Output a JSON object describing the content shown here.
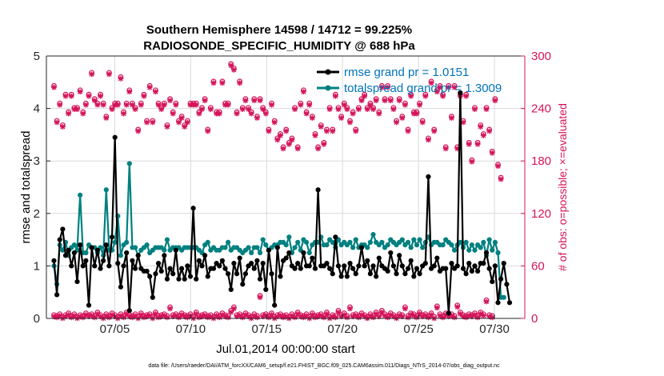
{
  "chart_data": {
    "type": "line",
    "title_line1": "Southern Hemisphere 14598 / 14712 = 99.225%",
    "title_line2": "RADIOSONDE_SPECIFIC_HUMIDITY @ 688 hPa",
    "xlabel": "Jul.01,2014 00:00:00 start",
    "ylabel_left": "rmse and totalspread",
    "ylabel_right": "# of obs: o=possible; ×=evaluated",
    "footnote": "data file: /Users/raeder/DAI/ATM_forcXX/CAM6_setup/f.e21.FHIST_BGC.f09_025.CAM6assim.011/Diags_NTrS_2014-07/obs_diag_output.nc",
    "xlim": [
      0.5,
      32
    ],
    "ylim_left": [
      0,
      5
    ],
    "ylim_right": [
      0,
      300
    ],
    "xticks": [
      5,
      10,
      15,
      20,
      25,
      30
    ],
    "xtick_labels": [
      "07/05",
      "07/10",
      "07/15",
      "07/20",
      "07/25",
      "07/30"
    ],
    "yticks_left": [
      0,
      1,
      2,
      3,
      4,
      5
    ],
    "ytick_labels_left": [
      "0",
      "1",
      "2",
      "3",
      "4",
      "5"
    ],
    "yticks_right": [
      0,
      60,
      120,
      180,
      240,
      300
    ],
    "ytick_labels_right": [
      "0",
      "60",
      "120",
      "180",
      "240",
      "300"
    ],
    "colors": {
      "rmse": "#000000",
      "spread": "#008080",
      "obs": "#d4145a",
      "legend_text": "#0072bd"
    },
    "series": [
      {
        "name": "rmse grand pr = 1.0151",
        "key": "rmse",
        "values": [
          1.1,
          0.45,
          1.5,
          1.7,
          1.2,
          1.3,
          1.0,
          1.25,
          0.7,
          1.4,
          1.0,
          1.1,
          0.25,
          1.35,
          1.0,
          1.3,
          0.95,
          1.1,
          1.4,
          1.0,
          1.55,
          3.45,
          1.05,
          0.6,
          1.0,
          1.25,
          0.15,
          1.1,
          0.95,
          1.2,
          0.95,
          0.9,
          0.9,
          0.8,
          0.4,
          0.85,
          1.05,
          0.9,
          1.2,
          0.75,
          0.95,
          0.85,
          1.3,
          0.75,
          0.95,
          0.75,
          1.0,
          0.8,
          2.1,
          0.75,
          1.1,
          1.0,
          1.2,
          0.8,
          0.95,
          0.95,
          1.05,
          1.0,
          1.1,
          0.95,
          0.85,
          0.55,
          1.05,
          0.85,
          1.15,
          0.65,
          0.85,
          1.0,
          1.05,
          0.95,
          1.1,
          0.75,
          1.05,
          0.55,
          1.3,
          0.85,
          0.25,
          1.35,
          0.8,
          1.1,
          1.15,
          1.25,
          1.0,
          0.95,
          1.05,
          0.95,
          1.25,
          1.0,
          1.0,
          1.15,
          0.95,
          2.45,
          1.0,
          1.0,
          1.05,
          0.95,
          0.85,
          1.55,
          1.0,
          0.8,
          1.0,
          0.8,
          1.05,
          0.95,
          0.85,
          1.0,
          1.35,
          1.0,
          1.1,
          0.85,
          1.0,
          0.8,
          1.15,
          1.0,
          0.95,
          0.9,
          1.25,
          1.0,
          0.85,
          1.2,
          1.0,
          0.85,
          0.95,
          1.1,
          0.8,
          0.95,
          0.85,
          1.0,
          1.05,
          2.7,
          0.95,
          1.0,
          1.15,
          0.9,
          0.95,
          0.95,
          0.1,
          1.05,
          0.95,
          1.0,
          4.3,
          0.95,
          0.85,
          1.05,
          0.9,
          1.0,
          0.9,
          1.05,
          1.05,
          1.25,
          0.95,
          0.7,
          1.0,
          0.3,
          0.75,
          1.05,
          0.65,
          0.3
        ]
      },
      {
        "name": "totalspread grand pr = 1.3009",
        "key": "spread",
        "values": [
          1.0,
          0.65,
          1.4,
          1.3,
          1.45,
          1.2,
          1.35,
          1.4,
          1.3,
          2.35,
          1.25,
          1.25,
          1.4,
          1.35,
          1.35,
          1.25,
          1.35,
          1.2,
          2.45,
          1.3,
          1.3,
          1.45,
          1.95,
          1.2,
          1.4,
          1.45,
          2.95,
          1.35,
          1.35,
          1.2,
          1.3,
          1.35,
          1.4,
          1.25,
          1.3,
          1.35,
          1.35,
          1.35,
          1.3,
          1.5,
          1.3,
          1.35,
          1.35,
          1.35,
          1.3,
          1.35,
          1.35,
          1.35,
          1.35,
          1.35,
          1.3,
          1.25,
          1.4,
          1.45,
          1.3,
          1.35,
          1.3,
          1.3,
          1.35,
          1.35,
          1.45,
          1.3,
          1.35,
          1.35,
          1.3,
          1.25,
          1.3,
          1.35,
          1.25,
          1.35,
          1.35,
          1.25,
          1.5,
          1.4,
          1.3,
          1.35,
          1.4,
          1.4,
          1.45,
          1.45,
          1.4,
          1.55,
          1.25,
          1.35,
          1.45,
          1.3,
          1.5,
          1.45,
          1.25,
          1.4,
          1.45,
          1.45,
          1.55,
          1.4,
          1.4,
          1.5,
          1.45,
          1.35,
          1.5,
          1.4,
          1.45,
          1.4,
          1.45,
          1.35,
          1.5,
          1.35,
          1.4,
          1.4,
          1.35,
          1.45,
          1.6,
          1.45,
          1.4,
          1.45,
          1.35,
          1.4,
          1.5,
          1.45,
          1.4,
          1.45,
          1.5,
          1.4,
          1.45,
          1.35,
          1.5,
          1.4,
          1.5,
          1.35,
          1.45,
          1.55,
          1.4,
          1.45,
          1.45,
          1.4,
          1.4,
          1.5,
          1.45,
          1.4,
          1.3,
          1.4,
          1.45,
          1.35,
          1.45,
          1.3,
          1.4,
          1.3,
          1.4,
          1.35,
          1.45,
          1.2,
          1.5,
          1.3,
          1.45,
          1.25,
          0.4,
          0.4
        ]
      },
      {
        "name": "obs possible/evaluated (upper)",
        "key": "obs_upper",
        "values": [
          265,
          225,
          245,
          220,
          255,
          235,
          255,
          240,
          240,
          260,
          235,
          245,
          255,
          280,
          250,
          245,
          255,
          245,
          230,
          280,
          240,
          245,
          245,
          275,
          235,
          245,
          260,
          245,
          240,
          215,
          245,
          255,
          225,
          265,
          225,
          260,
          245,
          240,
          245,
          220,
          250,
          235,
          245,
          225,
          230,
          220,
          225,
          245,
          245,
          245,
          235,
          240,
          250,
          215,
          240,
          270,
          235,
          235,
          270,
          245,
          245,
          290,
          285,
          235,
          270,
          240,
          250,
          240,
          235,
          250,
          230,
          250,
          240,
          235,
          215,
          245,
          225,
          205,
          210,
          195,
          215,
          200,
          205,
          240,
          195,
          245,
          260,
          235,
          245,
          230,
          210,
          195,
          220,
          200,
          215,
          240,
          215,
          255,
          240,
          230,
          245,
          240,
          225,
          235,
          215,
          240,
          250,
          255,
          240,
          245,
          240,
          250,
          235,
          265,
          250,
          265,
          250,
          240,
          225,
          250,
          230,
          245,
          215,
          255,
          235,
          235,
          245,
          225,
          255,
          205,
          270,
          215,
          260,
          265,
          255,
          195,
          265,
          230,
          265,
          195,
          255,
          225,
          255,
          200,
          180,
          240,
          200,
          220,
          210,
          240,
          215,
          190,
          250,
          175,
          160
        ]
      },
      {
        "name": "obs possible/evaluated (lower)",
        "key": "obs_lower",
        "values": [
          3,
          2,
          4,
          1,
          3,
          5,
          2,
          4,
          1,
          3,
          2,
          5,
          3,
          4,
          2,
          6,
          3,
          1,
          4,
          2,
          5,
          3,
          1,
          4,
          2,
          6,
          3,
          2,
          4,
          1,
          5,
          2,
          3,
          4,
          1,
          6,
          2,
          3,
          4,
          2,
          12,
          3,
          4,
          2,
          5,
          3,
          2,
          4,
          1,
          6,
          2,
          3,
          4,
          2,
          3,
          1,
          4,
          2,
          5,
          3,
          2,
          8,
          12,
          3,
          4,
          2,
          5,
          3,
          1,
          4,
          2,
          25,
          3,
          4,
          2,
          5,
          1,
          3,
          4,
          2,
          3,
          1,
          4,
          2,
          6,
          3,
          2,
          4,
          1,
          5,
          2,
          3,
          4,
          2,
          6,
          1,
          3,
          2,
          8,
          3,
          5,
          2,
          12,
          3,
          4,
          2,
          5,
          3,
          1,
          4,
          2,
          6,
          3,
          8,
          4,
          2,
          5,
          3,
          1,
          4,
          3,
          12,
          2,
          5,
          4,
          2,
          6,
          3,
          4,
          2,
          5,
          1,
          13,
          4,
          2,
          5,
          3,
          4,
          2,
          14,
          6,
          3,
          2,
          4,
          3,
          5,
          2,
          6,
          4,
          20,
          3,
          2
        ]
      }
    ],
    "legend": {
      "placement": "top-right",
      "entries": [
        "rmse grand pr = 1.0151",
        "totalspread grand pr = 1.3009"
      ]
    }
  }
}
